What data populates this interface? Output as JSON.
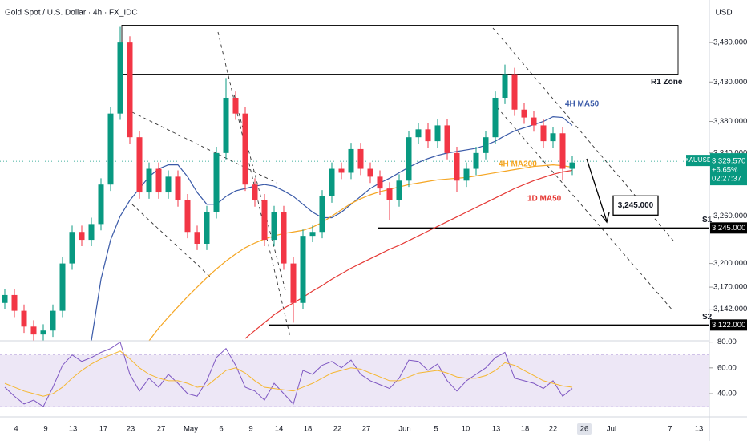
{
  "chart_data": {
    "type": "candlestick",
    "title": "Gold Spot / U.S. Dollar · 4h · FX_IDC",
    "currency": "USD",
    "symbol": "XAUUSD",
    "up_color": "#089981",
    "down_color": "#f23645",
    "open": [
      3150,
      3160,
      3140,
      3120,
      3110,
      3115,
      3140,
      3200,
      3240,
      3230,
      3250,
      3300,
      3390,
      3480,
      3360,
      3290,
      3320,
      3290,
      3310,
      3280,
      3240,
      3225,
      3265,
      3340,
      3410,
      3390,
      3300,
      3280,
      3230,
      3265,
      3200,
      3150,
      3235,
      3240,
      3285,
      3320,
      3315,
      3345,
      3320,
      3310,
      3295,
      3280,
      3305,
      3360,
      3370,
      3355,
      3375,
      3340,
      3305,
      3320,
      3340,
      3360,
      3410,
      3440,
      3395,
      3385,
      3375,
      3355,
      3365,
      3320
    ],
    "high": [
      3168,
      3168,
      3148,
      3128,
      3123,
      3148,
      3208,
      3248,
      3248,
      3258,
      3308,
      3398,
      3500,
      3488,
      3368,
      3328,
      3328,
      3318,
      3318,
      3288,
      3248,
      3273,
      3348,
      3435,
      3418,
      3398,
      3308,
      3288,
      3273,
      3273,
      3208,
      3243,
      3248,
      3293,
      3328,
      3328,
      3353,
      3353,
      3328,
      3318,
      3303,
      3313,
      3368,
      3378,
      3378,
      3383,
      3383,
      3348,
      3328,
      3348,
      3368,
      3418,
      3452,
      3448,
      3403,
      3393,
      3383,
      3373,
      3373,
      3336
    ],
    "low": [
      3142,
      3132,
      3112,
      3102,
      3102,
      3107,
      3132,
      3192,
      3222,
      3222,
      3242,
      3292,
      3382,
      3352,
      3282,
      3282,
      3282,
      3282,
      3272,
      3232,
      3217,
      3217,
      3257,
      3332,
      3382,
      3292,
      3272,
      3222,
      3222,
      3192,
      3125,
      3142,
      3227,
      3232,
      3277,
      3307,
      3307,
      3312,
      3302,
      3287,
      3255,
      3272,
      3297,
      3352,
      3347,
      3347,
      3332,
      3290,
      3297,
      3312,
      3332,
      3352,
      3402,
      3387,
      3377,
      3367,
      3347,
      3347,
      3305,
      3312
    ],
    "close": [
      3160,
      3140,
      3120,
      3110,
      3115,
      3140,
      3200,
      3240,
      3230,
      3250,
      3300,
      3390,
      3480,
      3360,
      3290,
      3320,
      3290,
      3310,
      3280,
      3240,
      3225,
      3265,
      3340,
      3410,
      3390,
      3300,
      3280,
      3230,
      3265,
      3200,
      3150,
      3235,
      3240,
      3285,
      3320,
      3315,
      3345,
      3320,
      3310,
      3295,
      3280,
      3305,
      3360,
      3370,
      3355,
      3375,
      3340,
      3305,
      3320,
      3340,
      3360,
      3410,
      3440,
      3395,
      3385,
      3375,
      3355,
      3365,
      3320,
      3328
    ],
    "series": [
      {
        "name": "4H MA50",
        "color": "#3a5aa8",
        "values": [
          null,
          null,
          null,
          null,
          null,
          null,
          null,
          null,
          null,
          3102,
          3180,
          3230,
          3260,
          3280,
          3295,
          3310,
          3320,
          3325,
          3325,
          3310,
          3290,
          3275,
          3275,
          3285,
          3292,
          3295,
          3298,
          3300,
          3298,
          3292,
          3285,
          3275,
          3265,
          3258,
          3258,
          3265,
          3275,
          3285,
          3295,
          3302,
          3308,
          3315,
          3322,
          3328,
          3333,
          3337,
          3340,
          3342,
          3344,
          3346,
          3350,
          3355,
          3362,
          3368,
          3372,
          3376,
          3380,
          3386,
          3385,
          3375
        ]
      },
      {
        "name": "4H MA200",
        "color": "#f5a623",
        "values": [
          null,
          null,
          null,
          null,
          null,
          null,
          null,
          null,
          null,
          null,
          null,
          null,
          null,
          null,
          null,
          3102,
          3118,
          3132,
          3145,
          3158,
          3170,
          3182,
          3193,
          3203,
          3212,
          3220,
          3226,
          3231,
          3235,
          3238,
          3240,
          3242,
          3246,
          3252,
          3260,
          3268,
          3276,
          3282,
          3287,
          3291,
          3294,
          3297,
          3300,
          3302,
          3304,
          3306,
          3307,
          3308,
          3309,
          3311,
          3313,
          3315,
          3317,
          3319,
          3321,
          3323,
          3324,
          3325,
          3324,
          3322
        ]
      },
      {
        "name": "1D MA50",
        "color": "#e53935",
        "values": [
          null,
          null,
          null,
          null,
          null,
          null,
          null,
          null,
          null,
          null,
          null,
          null,
          null,
          null,
          null,
          null,
          null,
          null,
          null,
          null,
          null,
          null,
          null,
          null,
          null,
          3105,
          3115,
          3125,
          3135,
          3143,
          3150,
          3157,
          3165,
          3172,
          3180,
          3187,
          3194,
          3200,
          3206,
          3212,
          3218,
          3223,
          3229,
          3235,
          3241,
          3247,
          3253,
          3259,
          3265,
          3271,
          3277,
          3283,
          3289,
          3295,
          3300,
          3305,
          3309,
          3313,
          3316,
          3318
        ]
      }
    ],
    "ylim": [
      3102,
      3534
    ],
    "yticks": [
      {
        "value": 3480,
        "label": "3,480.000"
      },
      {
        "value": 3430,
        "label": "3,430.000"
      },
      {
        "value": 3380,
        "label": "3,380.000"
      },
      {
        "value": 3340,
        "label": "3,340.000"
      },
      {
        "value": 3260,
        "label": "3,260.000"
      },
      {
        "value": 3200,
        "label": "3,200.000"
      },
      {
        "value": 3170,
        "label": "3,170.000"
      },
      {
        "value": 3142,
        "label": "3,142.000"
      }
    ],
    "zone": {
      "name": "R1 Zone",
      "low": 3440,
      "high": 3502
    },
    "levels": [
      {
        "name": "S1",
        "value": 3245,
        "label": "3,245.000"
      },
      {
        "name": "S2",
        "value": 3122,
        "label": "3,122.000"
      }
    ],
    "callout": {
      "value": 3245,
      "label": "3,245.000"
    },
    "last_price": {
      "value": 3329.57,
      "label": "3,329.570"
    },
    "change": "+6.65%",
    "countdown": "02:27:37",
    "xlabels": [
      "4",
      "9",
      "13",
      "17",
      "23",
      "27",
      "May",
      "6",
      "9",
      "14",
      "18",
      "22",
      "27",
      "Jun",
      "5",
      "10",
      "13",
      "18",
      "22",
      "26",
      "Jul",
      "7",
      "13"
    ],
    "rsi": {
      "values": [
        45,
        38,
        32,
        35,
        30,
        45,
        62,
        70,
        65,
        68,
        72,
        75,
        80,
        55,
        42,
        52,
        45,
        55,
        48,
        40,
        38,
        50,
        68,
        75,
        62,
        45,
        42,
        35,
        48,
        40,
        32,
        58,
        55,
        62,
        65,
        60,
        66,
        55,
        50,
        47,
        44,
        52,
        66,
        65,
        58,
        63,
        50,
        42,
        50,
        55,
        60,
        68,
        72,
        52,
        50,
        48,
        44,
        50,
        38,
        44
      ],
      "ma": [
        48,
        45,
        42,
        40,
        38,
        40,
        45,
        52,
        58,
        63,
        67,
        70,
        73,
        67,
        60,
        55,
        52,
        50,
        50,
        48,
        45,
        46,
        52,
        58,
        60,
        56,
        50,
        45,
        44,
        43,
        42,
        45,
        48,
        52,
        56,
        58,
        60,
        59,
        56,
        53,
        50,
        50,
        53,
        56,
        57,
        58,
        56,
        53,
        52,
        52,
        54,
        58,
        64,
        62,
        58,
        54,
        50,
        48,
        46,
        45
      ],
      "color": "#7e57c2",
      "ma_color": "#f5b731",
      "band": [
        30,
        70
      ],
      "ylim": [
        22,
        81
      ],
      "yticks": [
        {
          "value": 80,
          "label": "80.00"
        },
        {
          "value": 60,
          "label": "60.00"
        },
        {
          "value": 40,
          "label": "40.00"
        }
      ]
    }
  }
}
